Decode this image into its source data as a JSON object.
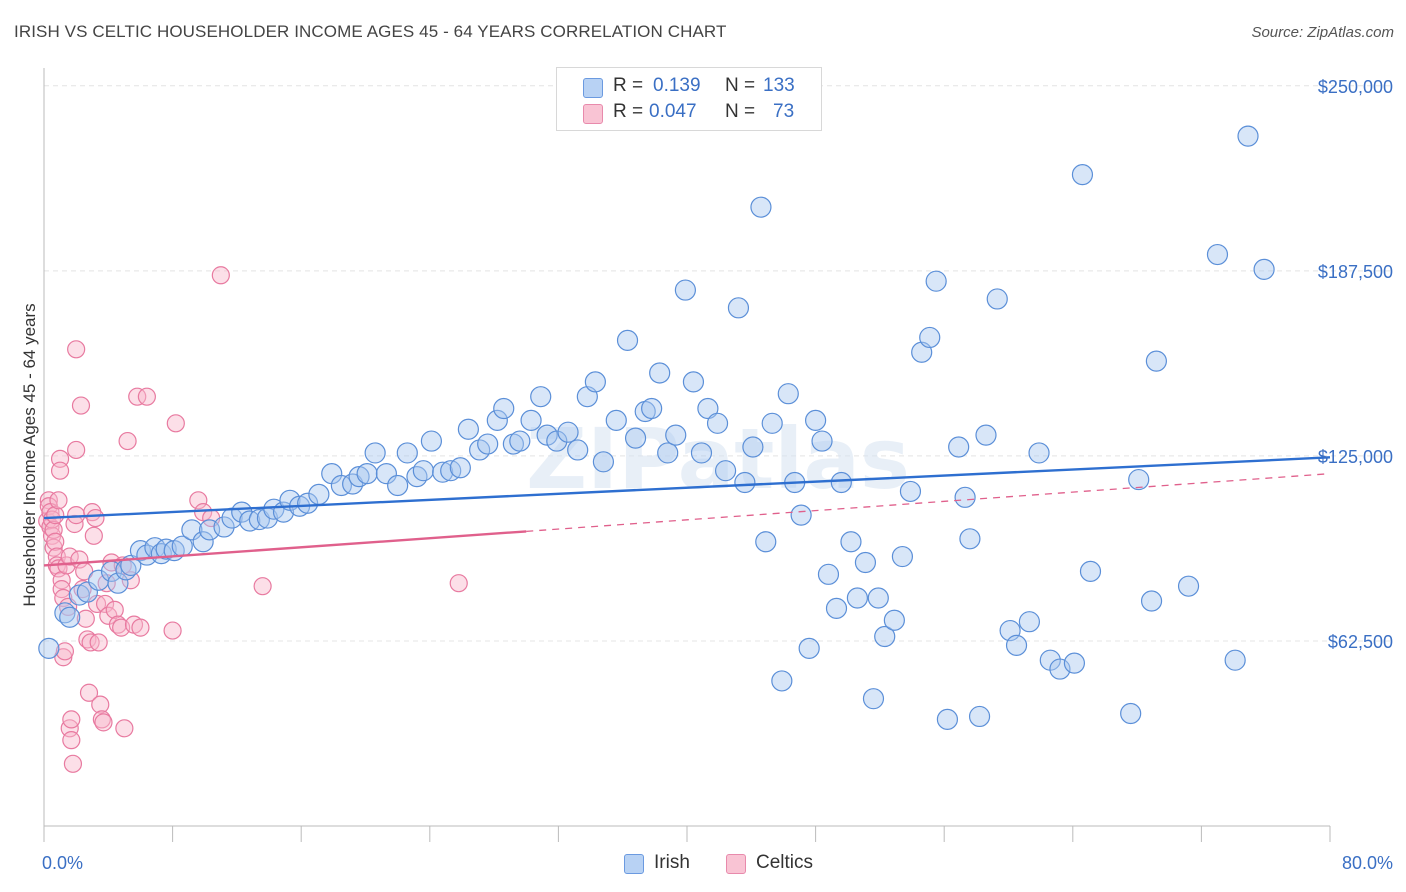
{
  "title": "IRISH VS CELTIC HOUSEHOLDER INCOME AGES 45 - 64 YEARS CORRELATION CHART",
  "source": "Source: ZipAtlas.com",
  "watermark": "ZIPatlas",
  "legend": {
    "irish": {
      "r_label": "R =",
      "r_value": "0.139",
      "n_label": "N =",
      "n_value": "133"
    },
    "celtics": {
      "r_label": "R =",
      "r_value": "0.047",
      "n_label": "N =",
      "n_value": "73"
    }
  },
  "colors": {
    "irish_fill": "#a8c8f0",
    "irish_stroke": "#5b8fd8",
    "irish_line": "#2e6fd0",
    "celtics_fill": "#f8b8cc",
    "celtics_stroke": "#e87aa0",
    "celtics_line": "#e0608c",
    "tick_label": "#3a6fc4",
    "grid": "#e4e4e4"
  },
  "chart_data": {
    "type": "scatter",
    "title": "IRISH VS CELTIC HOUSEHOLDER INCOME AGES 45 - 64 YEARS CORRELATION CHART",
    "xlabel": "",
    "ylabel": "Householder Income Ages 45 - 64 years",
    "xlim": [
      0,
      80
    ],
    "ylim": [
      0,
      256000
    ],
    "x_tick_labels": [
      "0.0%",
      "80.0%"
    ],
    "y_ticks": [
      62500,
      125000,
      187500,
      250000
    ],
    "y_tick_labels": [
      "$62,500",
      "$125,000",
      "$187,500",
      "$250,000"
    ],
    "grid": "horizontal dashed",
    "legend_placement": "bottom-center",
    "series": [
      {
        "name": "Irish",
        "r": 0.139,
        "n": 133,
        "trend": {
          "x": [
            0,
            80
          ],
          "y": [
            104000,
            124500
          ],
          "style": "solid"
        },
        "points": [
          [
            0.3,
            60000
          ],
          [
            1.3,
            72000
          ],
          [
            1.6,
            70500
          ],
          [
            2.2,
            78000
          ],
          [
            2.7,
            79000
          ],
          [
            3.4,
            83000
          ],
          [
            4.2,
            86000
          ],
          [
            4.6,
            82000
          ],
          [
            5.1,
            86500
          ],
          [
            5.4,
            88000
          ],
          [
            6.0,
            93000
          ],
          [
            6.4,
            91500
          ],
          [
            6.9,
            94000
          ],
          [
            7.3,
            92000
          ],
          [
            7.6,
            93500
          ],
          [
            8.1,
            93000
          ],
          [
            8.6,
            94500
          ],
          [
            9.2,
            100000
          ],
          [
            9.9,
            96000
          ],
          [
            10.3,
            100000
          ],
          [
            11.2,
            101000
          ],
          [
            11.7,
            104000
          ],
          [
            12.3,
            106000
          ],
          [
            12.8,
            103000
          ],
          [
            13.4,
            103500
          ],
          [
            13.9,
            104000
          ],
          [
            14.3,
            107000
          ],
          [
            14.9,
            106000
          ],
          [
            15.3,
            110000
          ],
          [
            15.9,
            108000
          ],
          [
            16.4,
            109000
          ],
          [
            17.1,
            112000
          ],
          [
            17.9,
            119000
          ],
          [
            18.5,
            115000
          ],
          [
            19.2,
            115500
          ],
          [
            19.6,
            118000
          ],
          [
            20.1,
            119000
          ],
          [
            20.6,
            126000
          ],
          [
            21.3,
            119000
          ],
          [
            22.0,
            115000
          ],
          [
            22.6,
            126000
          ],
          [
            23.2,
            118000
          ],
          [
            23.6,
            120000
          ],
          [
            24.1,
            130000
          ],
          [
            24.8,
            119500
          ],
          [
            25.3,
            120000
          ],
          [
            25.9,
            121000
          ],
          [
            26.4,
            134000
          ],
          [
            27.1,
            127000
          ],
          [
            27.6,
            129000
          ],
          [
            28.2,
            137000
          ],
          [
            28.6,
            141000
          ],
          [
            29.2,
            129000
          ],
          [
            29.6,
            130000
          ],
          [
            30.3,
            137000
          ],
          [
            30.9,
            145000
          ],
          [
            31.3,
            132000
          ],
          [
            31.9,
            130000
          ],
          [
            32.6,
            133000
          ],
          [
            33.2,
            127000
          ],
          [
            33.8,
            145000
          ],
          [
            34.3,
            150000
          ],
          [
            34.8,
            123000
          ],
          [
            35.6,
            137000
          ],
          [
            36.3,
            164000
          ],
          [
            36.8,
            131000
          ],
          [
            37.4,
            140000
          ],
          [
            37.8,
            141000
          ],
          [
            38.3,
            153000
          ],
          [
            38.8,
            126000
          ],
          [
            39.3,
            132000
          ],
          [
            39.9,
            181000
          ],
          [
            40.4,
            150000
          ],
          [
            40.9,
            126000
          ],
          [
            41.3,
            141000
          ],
          [
            41.9,
            136000
          ],
          [
            42.4,
            120000
          ],
          [
            43.2,
            175000
          ],
          [
            43.6,
            116000
          ],
          [
            44.1,
            128000
          ],
          [
            44.6,
            209000
          ],
          [
            44.9,
            96000
          ],
          [
            45.3,
            136000
          ],
          [
            45.9,
            49000
          ],
          [
            46.3,
            146000
          ],
          [
            46.7,
            116000
          ],
          [
            47.1,
            105000
          ],
          [
            47.6,
            60000
          ],
          [
            48.0,
            137000
          ],
          [
            48.4,
            130000
          ],
          [
            48.8,
            85000
          ],
          [
            49.3,
            73500
          ],
          [
            49.6,
            116000
          ],
          [
            50.2,
            96000
          ],
          [
            50.6,
            77000
          ],
          [
            51.1,
            89000
          ],
          [
            51.6,
            43000
          ],
          [
            51.9,
            77000
          ],
          [
            52.3,
            64000
          ],
          [
            52.9,
            69500
          ],
          [
            53.4,
            91000
          ],
          [
            53.9,
            113000
          ],
          [
            54.6,
            160000
          ],
          [
            55.1,
            165000
          ],
          [
            55.5,
            184000
          ],
          [
            56.2,
            36000
          ],
          [
            56.9,
            128000
          ],
          [
            57.3,
            111000
          ],
          [
            57.6,
            97000
          ],
          [
            58.2,
            37000
          ],
          [
            58.6,
            132000
          ],
          [
            59.3,
            178000
          ],
          [
            60.1,
            66000
          ],
          [
            60.5,
            61000
          ],
          [
            61.3,
            69000
          ],
          [
            61.9,
            126000
          ],
          [
            62.6,
            56000
          ],
          [
            63.2,
            53000
          ],
          [
            64.1,
            55000
          ],
          [
            64.6,
            220000
          ],
          [
            65.1,
            86000
          ],
          [
            67.6,
            38000
          ],
          [
            68.1,
            117000
          ],
          [
            68.9,
            76000
          ],
          [
            69.2,
            157000
          ],
          [
            71.2,
            81000
          ],
          [
            73.0,
            193000
          ],
          [
            74.1,
            56000
          ],
          [
            74.9,
            233000
          ],
          [
            75.9,
            188000
          ]
        ]
      },
      {
        "name": "Celtics",
        "r": 0.047,
        "n": 73,
        "trend": {
          "x": [
            0,
            30
          ],
          "y": [
            88000,
            99500
          ],
          "style": "solid"
        },
        "trend_extension": {
          "x": [
            30,
            80
          ],
          "y": [
            99500,
            119000
          ],
          "style": "dashed"
        },
        "points": [
          [
            0.2,
            103000
          ],
          [
            0.3,
            110000
          ],
          [
            0.3,
            108000
          ],
          [
            0.4,
            106000
          ],
          [
            0.4,
            101000
          ],
          [
            0.5,
            98000
          ],
          [
            0.5,
            103500
          ],
          [
            0.6,
            100000
          ],
          [
            0.6,
            94000
          ],
          [
            0.7,
            105000
          ],
          [
            0.7,
            96000
          ],
          [
            0.8,
            91000
          ],
          [
            0.8,
            88000
          ],
          [
            0.9,
            110000
          ],
          [
            0.9,
            87000
          ],
          [
            1.0,
            124000
          ],
          [
            1.0,
            120000
          ],
          [
            1.1,
            83000
          ],
          [
            1.1,
            80000
          ],
          [
            1.2,
            77000
          ],
          [
            1.2,
            57000
          ],
          [
            1.3,
            59000
          ],
          [
            1.4,
            88000
          ],
          [
            1.5,
            74000
          ],
          [
            1.6,
            91000
          ],
          [
            1.6,
            33000
          ],
          [
            1.7,
            36000
          ],
          [
            1.7,
            29000
          ],
          [
            1.8,
            21000
          ],
          [
            1.9,
            102000
          ],
          [
            2.0,
            105000
          ],
          [
            2.0,
            127000
          ],
          [
            2.0,
            161000
          ],
          [
            2.2,
            90000
          ],
          [
            2.3,
            142000
          ],
          [
            2.4,
            80000
          ],
          [
            2.5,
            86000
          ],
          [
            2.6,
            70000
          ],
          [
            2.7,
            63000
          ],
          [
            2.8,
            45000
          ],
          [
            2.9,
            62000
          ],
          [
            3.0,
            106000
          ],
          [
            3.1,
            98000
          ],
          [
            3.2,
            104000
          ],
          [
            3.3,
            75000
          ],
          [
            3.4,
            62000
          ],
          [
            3.5,
            41000
          ],
          [
            3.6,
            36000
          ],
          [
            3.7,
            35000
          ],
          [
            3.8,
            75000
          ],
          [
            3.9,
            82000
          ],
          [
            4.0,
            71000
          ],
          [
            4.2,
            89000
          ],
          [
            4.4,
            73000
          ],
          [
            4.6,
            68000
          ],
          [
            4.8,
            67000
          ],
          [
            4.9,
            88000
          ],
          [
            5.0,
            33000
          ],
          [
            5.2,
            130000
          ],
          [
            5.4,
            83000
          ],
          [
            5.6,
            68000
          ],
          [
            5.8,
            145000
          ],
          [
            6.0,
            67000
          ],
          [
            6.4,
            145000
          ],
          [
            8.0,
            66000
          ],
          [
            8.2,
            136000
          ],
          [
            9.6,
            110000
          ],
          [
            9.9,
            106000
          ],
          [
            10.4,
            104000
          ],
          [
            11.0,
            186000
          ],
          [
            13.6,
            81000
          ],
          [
            25.8,
            82000
          ]
        ]
      }
    ]
  }
}
